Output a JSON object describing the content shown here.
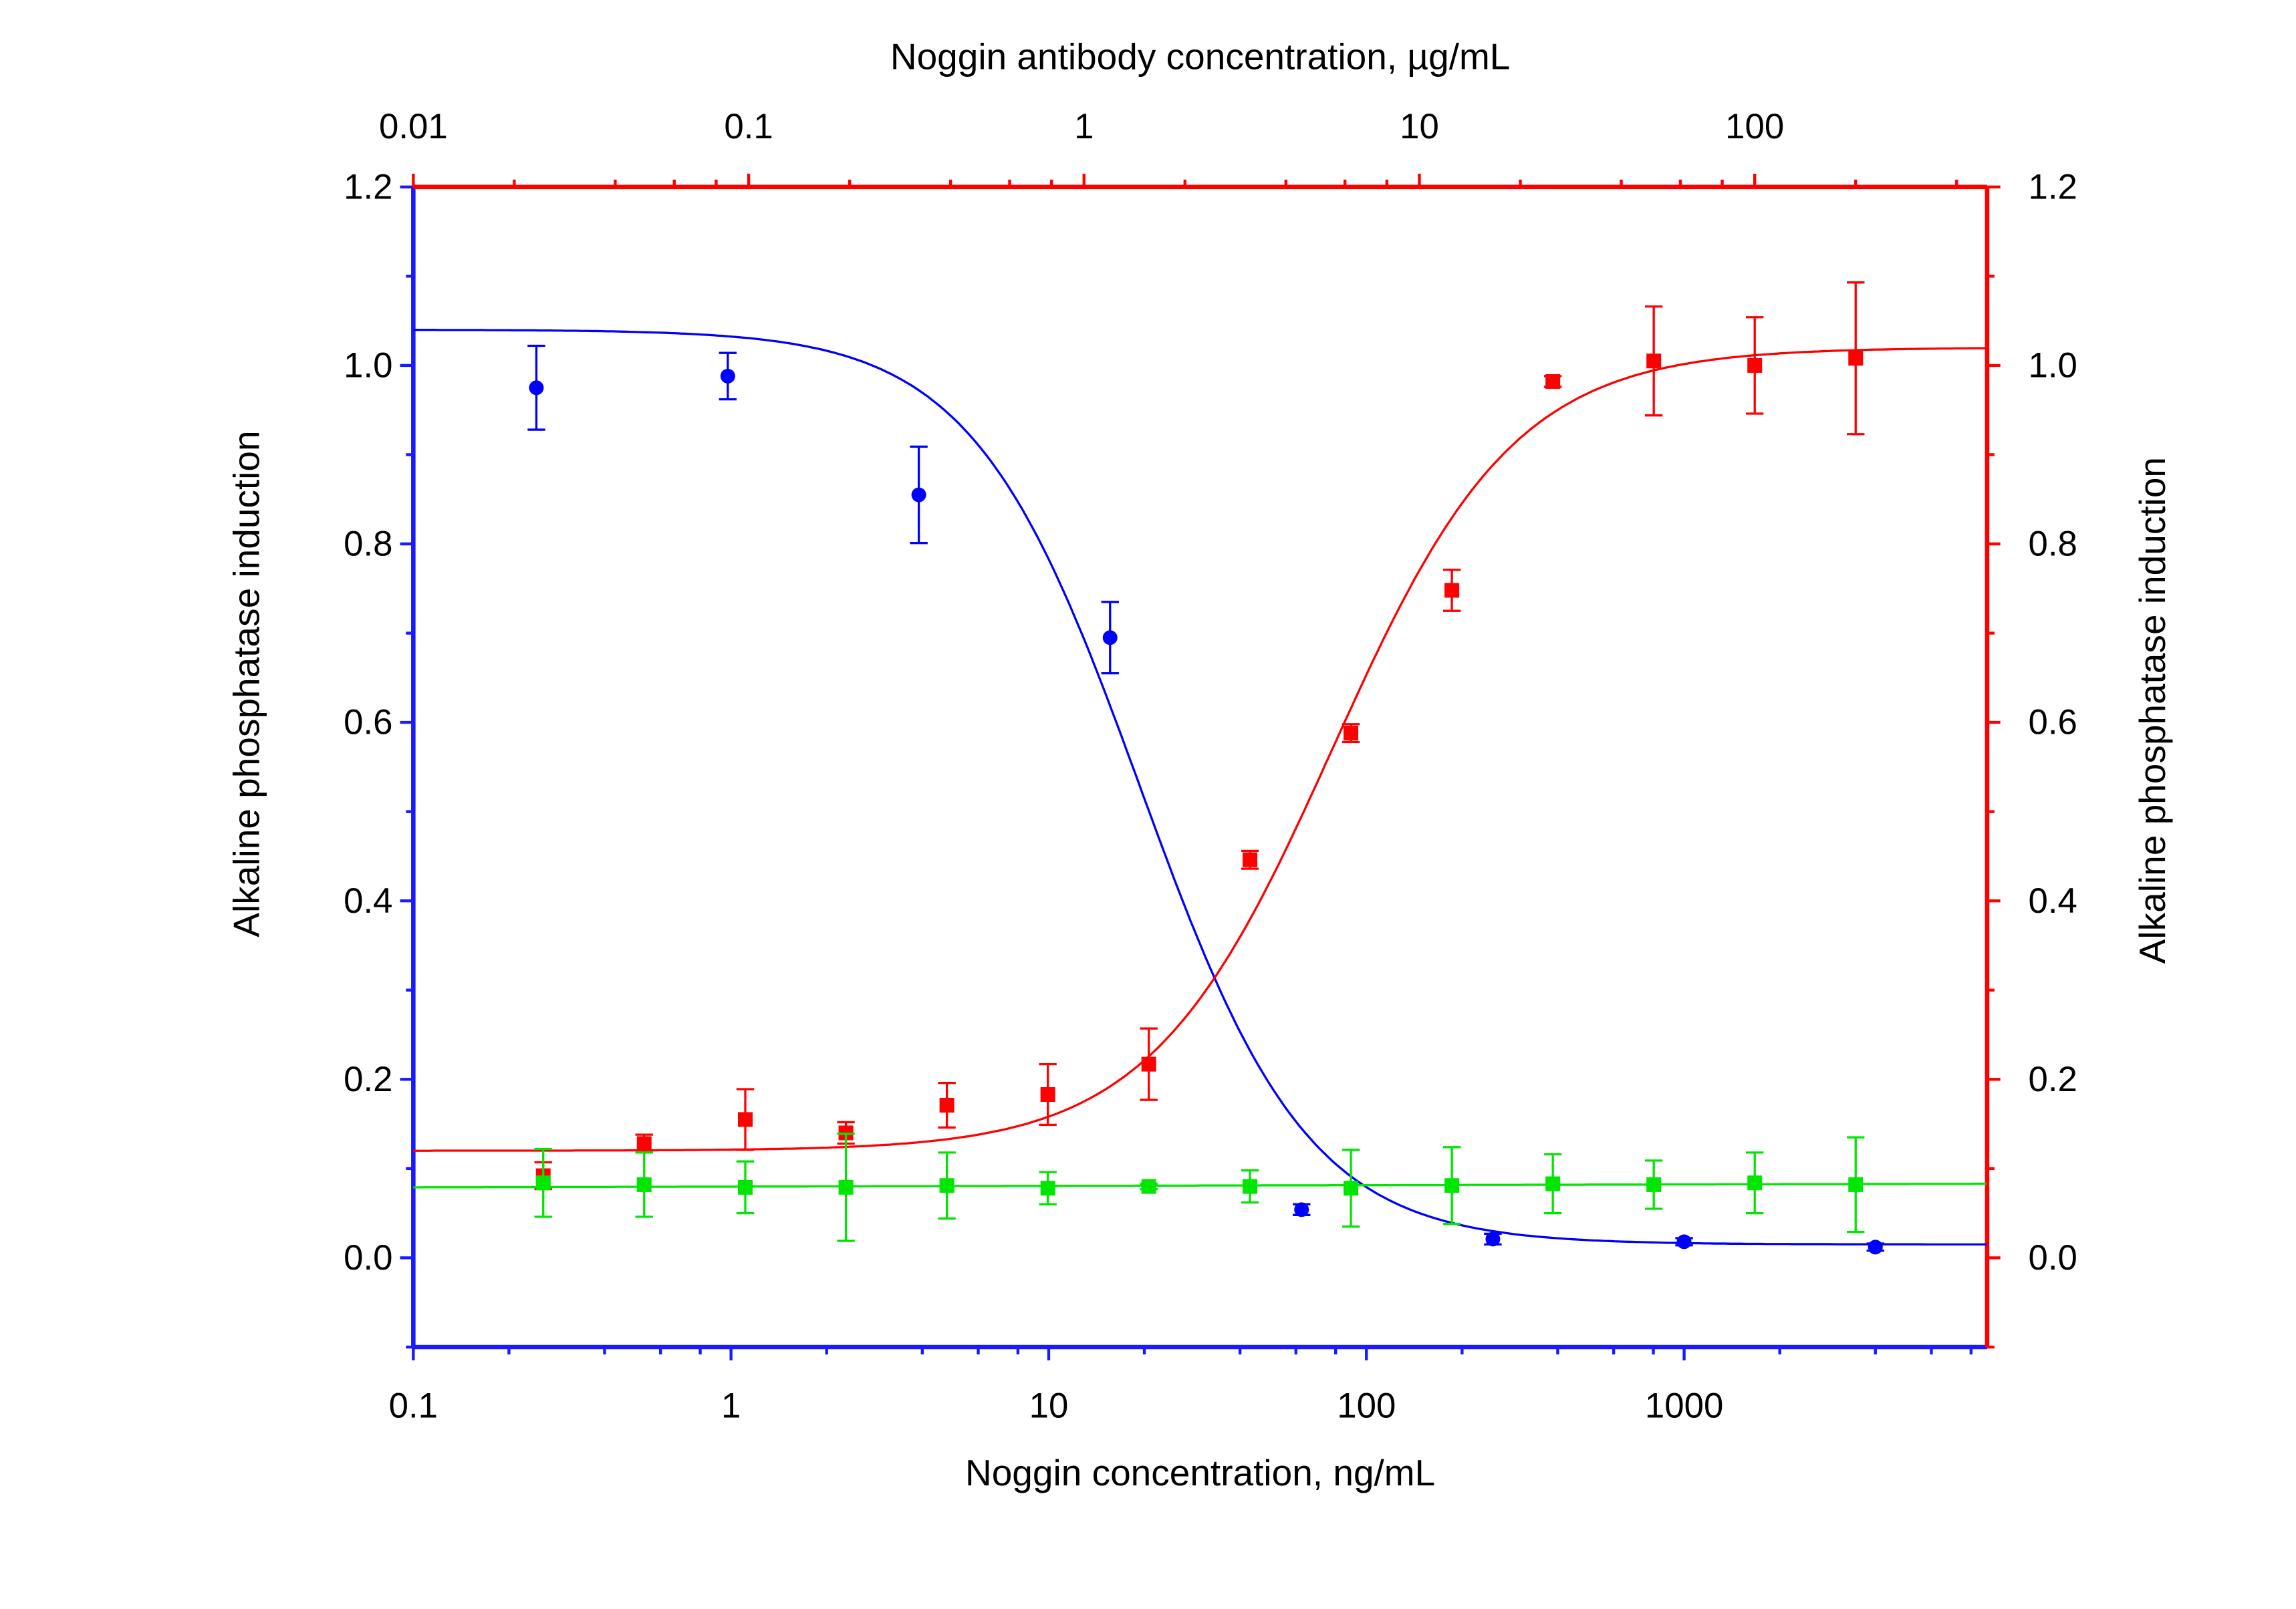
{
  "chart_data": {
    "type": "scatter",
    "title": "",
    "xlabel_bottom": "Noggin concentration, ng/mL",
    "xlabel_top": "Noggin antibody concentration, µg/mL",
    "ylabel_left": "Alkaline phosphatase  induction",
    "ylabel_right": "Alkaline phosphatase  induction",
    "x_bottom_scale": "log",
    "x_bottom_range": [
      0.1,
      9000
    ],
    "x_bottom_ticks": [
      "0.1",
      "1",
      "10",
      "100",
      "1000"
    ],
    "x_top_scale": "log",
    "x_top_range": [
      0.01,
      490
    ],
    "x_top_ticks": [
      "0.01",
      "0.1",
      "1",
      "10",
      "100"
    ],
    "y_range": [
      -0.1,
      1.2
    ],
    "y_ticks": [
      "0.0",
      "0.2",
      "0.4",
      "0.6",
      "0.8",
      "1.0",
      "1.2"
    ],
    "grid": false,
    "colors": {
      "left_axis": "#1a1aff",
      "right_axis": "#ff0000",
      "top_axis": "#ff0000",
      "bottom_axis": "#1a1aff"
    },
    "series": [
      {
        "color": "#0000ff",
        "marker": "circle",
        "x_axis": "bottom",
        "x": [
          0.244,
          0.977,
          3.9,
          15.6,
          62.5,
          250,
          1000,
          4000
        ],
        "y": [
          0.975,
          0.988,
          0.855,
          0.695,
          0.054,
          0.021,
          0.018,
          0.012
        ],
        "err": [
          0.047,
          0.026,
          0.054,
          0.04,
          0.006,
          0.006,
          0.004,
          0.004
        ],
        "fit": {
          "model": "4PL",
          "bottom": 0.015,
          "top": 1.04,
          "ec50": 19.4,
          "hill": -1.65
        }
      },
      {
        "color": "#ff0000",
        "marker": "square",
        "x_axis": "top",
        "x": [
          0.0244,
          0.0488,
          0.0977,
          0.195,
          0.39,
          0.78,
          1.56,
          3.125,
          6.25,
          12.5,
          25,
          50,
          100,
          200
        ],
        "y": [
          0.092,
          0.128,
          0.155,
          0.14,
          0.171,
          0.183,
          0.217,
          0.446,
          0.588,
          0.748,
          0.982,
          1.005,
          1.0,
          1.008
        ],
        "err": [
          0.015,
          0.01,
          0.034,
          0.012,
          0.025,
          0.034,
          0.04,
          0.01,
          0.01,
          0.023,
          0.006,
          0.061,
          0.054,
          0.085
        ],
        "fit": {
          "model": "4PL",
          "bottom": 0.12,
          "top": 1.02,
          "ec50": 5.5,
          "hill": 1.6
        }
      },
      {
        "color": "#00e600",
        "marker": "square",
        "x_axis": "top",
        "x": [
          0.0244,
          0.0488,
          0.0977,
          0.195,
          0.39,
          0.78,
          1.56,
          3.125,
          6.25,
          12.5,
          25,
          50,
          100,
          200
        ],
        "y": [
          0.084,
          0.082,
          0.079,
          0.079,
          0.081,
          0.078,
          0.08,
          0.08,
          0.078,
          0.081,
          0.083,
          0.082,
          0.084,
          0.082
        ],
        "err": [
          0.038,
          0.036,
          0.029,
          0.06,
          0.037,
          0.018,
          0.003,
          0.018,
          0.043,
          0.043,
          0.033,
          0.027,
          0.034,
          0.053
        ],
        "fit": {
          "model": "linear",
          "y_start": 0.079,
          "y_end": 0.083
        }
      }
    ]
  }
}
